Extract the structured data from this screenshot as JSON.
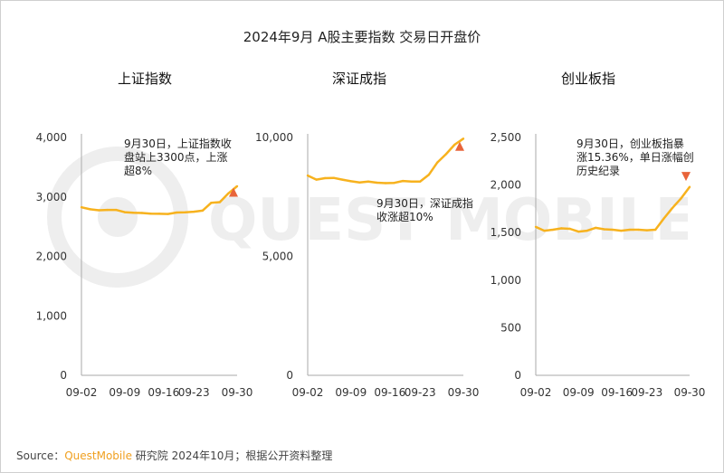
{
  "title": "2024年9月 A股主要指数 交易日开盘价",
  "watermark_text": "QUEST MOBILE",
  "source": {
    "label": "Source：",
    "brand": "QuestMobile",
    "text": " 研究院 2024年10月；根据公开资料整理"
  },
  "colors": {
    "line": "#f7b21e",
    "marker": "#e8643a",
    "axis": "#aaaaaa",
    "text": "#333333"
  },
  "chart_data": [
    {
      "type": "line",
      "title": "上证指数",
      "x_ticks": [
        "09-02",
        "09-09",
        "09-16",
        "09-23",
        "09-30"
      ],
      "y_ticks": [
        "0",
        "1,000",
        "2,000",
        "3,000",
        "4,000"
      ],
      "ylim": [
        0,
        4000
      ],
      "x": [
        "09-02",
        "09-03",
        "09-04",
        "09-05",
        "09-06",
        "09-09",
        "09-10",
        "09-11",
        "09-12",
        "09-13",
        "09-18",
        "09-19",
        "09-20",
        "09-23",
        "09-24",
        "09-25",
        "09-26",
        "09-27",
        "09-30"
      ],
      "values": [
        2826,
        2793,
        2776,
        2782,
        2782,
        2743,
        2733,
        2730,
        2720,
        2717,
        2714,
        2737,
        2740,
        2752,
        2770,
        2900,
        2912,
        3060,
        3180
      ],
      "marker": {
        "x": "09-30",
        "value": 3080,
        "shape": "triangle-up"
      },
      "annotation": [
        "9月30日，上证指数收",
        "盘站上3300点，上涨",
        "超8%"
      ]
    },
    {
      "type": "line",
      "title": "深证成指",
      "x_ticks": [
        "09-02",
        "09-09",
        "09-16",
        "09-23",
        "09-30"
      ],
      "y_ticks": [
        "0",
        "5,000",
        "10,000"
      ],
      "ylim": [
        0,
        10000
      ],
      "x": [
        "09-02",
        "09-03",
        "09-04",
        "09-05",
        "09-06",
        "09-09",
        "09-10",
        "09-11",
        "09-12",
        "09-13",
        "09-18",
        "09-19",
        "09-20",
        "09-23",
        "09-24",
        "09-25",
        "09-26",
        "09-27",
        "09-30"
      ],
      "values": [
        8400,
        8230,
        8290,
        8300,
        8230,
        8160,
        8110,
        8150,
        8100,
        8080,
        8090,
        8170,
        8150,
        8150,
        8430,
        8950,
        9300,
        9700,
        9950
      ],
      "marker": {
        "x": "09-30",
        "value": 9630,
        "shape": "triangle-up"
      },
      "annotation": [
        "9月30日，深证成指",
        "收涨超10%"
      ]
    },
    {
      "type": "line",
      "title": "创业板指",
      "x_ticks": [
        "09-02",
        "09-09",
        "09-16",
        "09-23",
        "09-30"
      ],
      "y_ticks": [
        "0",
        "500",
        "1,000",
        "1,500",
        "2,000",
        "2,500"
      ],
      "ylim": [
        0,
        2500
      ],
      "x": [
        "09-02",
        "09-03",
        "09-04",
        "09-05",
        "09-06",
        "09-09",
        "09-10",
        "09-11",
        "09-12",
        "09-13",
        "09-18",
        "09-19",
        "09-20",
        "09-23",
        "09-24",
        "09-25",
        "09-26",
        "09-27",
        "09-30"
      ],
      "values": [
        1560,
        1520,
        1530,
        1545,
        1540,
        1510,
        1520,
        1550,
        1535,
        1530,
        1520,
        1530,
        1530,
        1525,
        1530,
        1650,
        1760,
        1860,
        1980
      ],
      "marker": {
        "x": "09-30",
        "value": 2090,
        "shape": "triangle-down"
      },
      "annotation": [
        "9月30日，创业板指暴",
        "涨15.36%，单日涨幅创",
        "历史纪录"
      ]
    }
  ]
}
